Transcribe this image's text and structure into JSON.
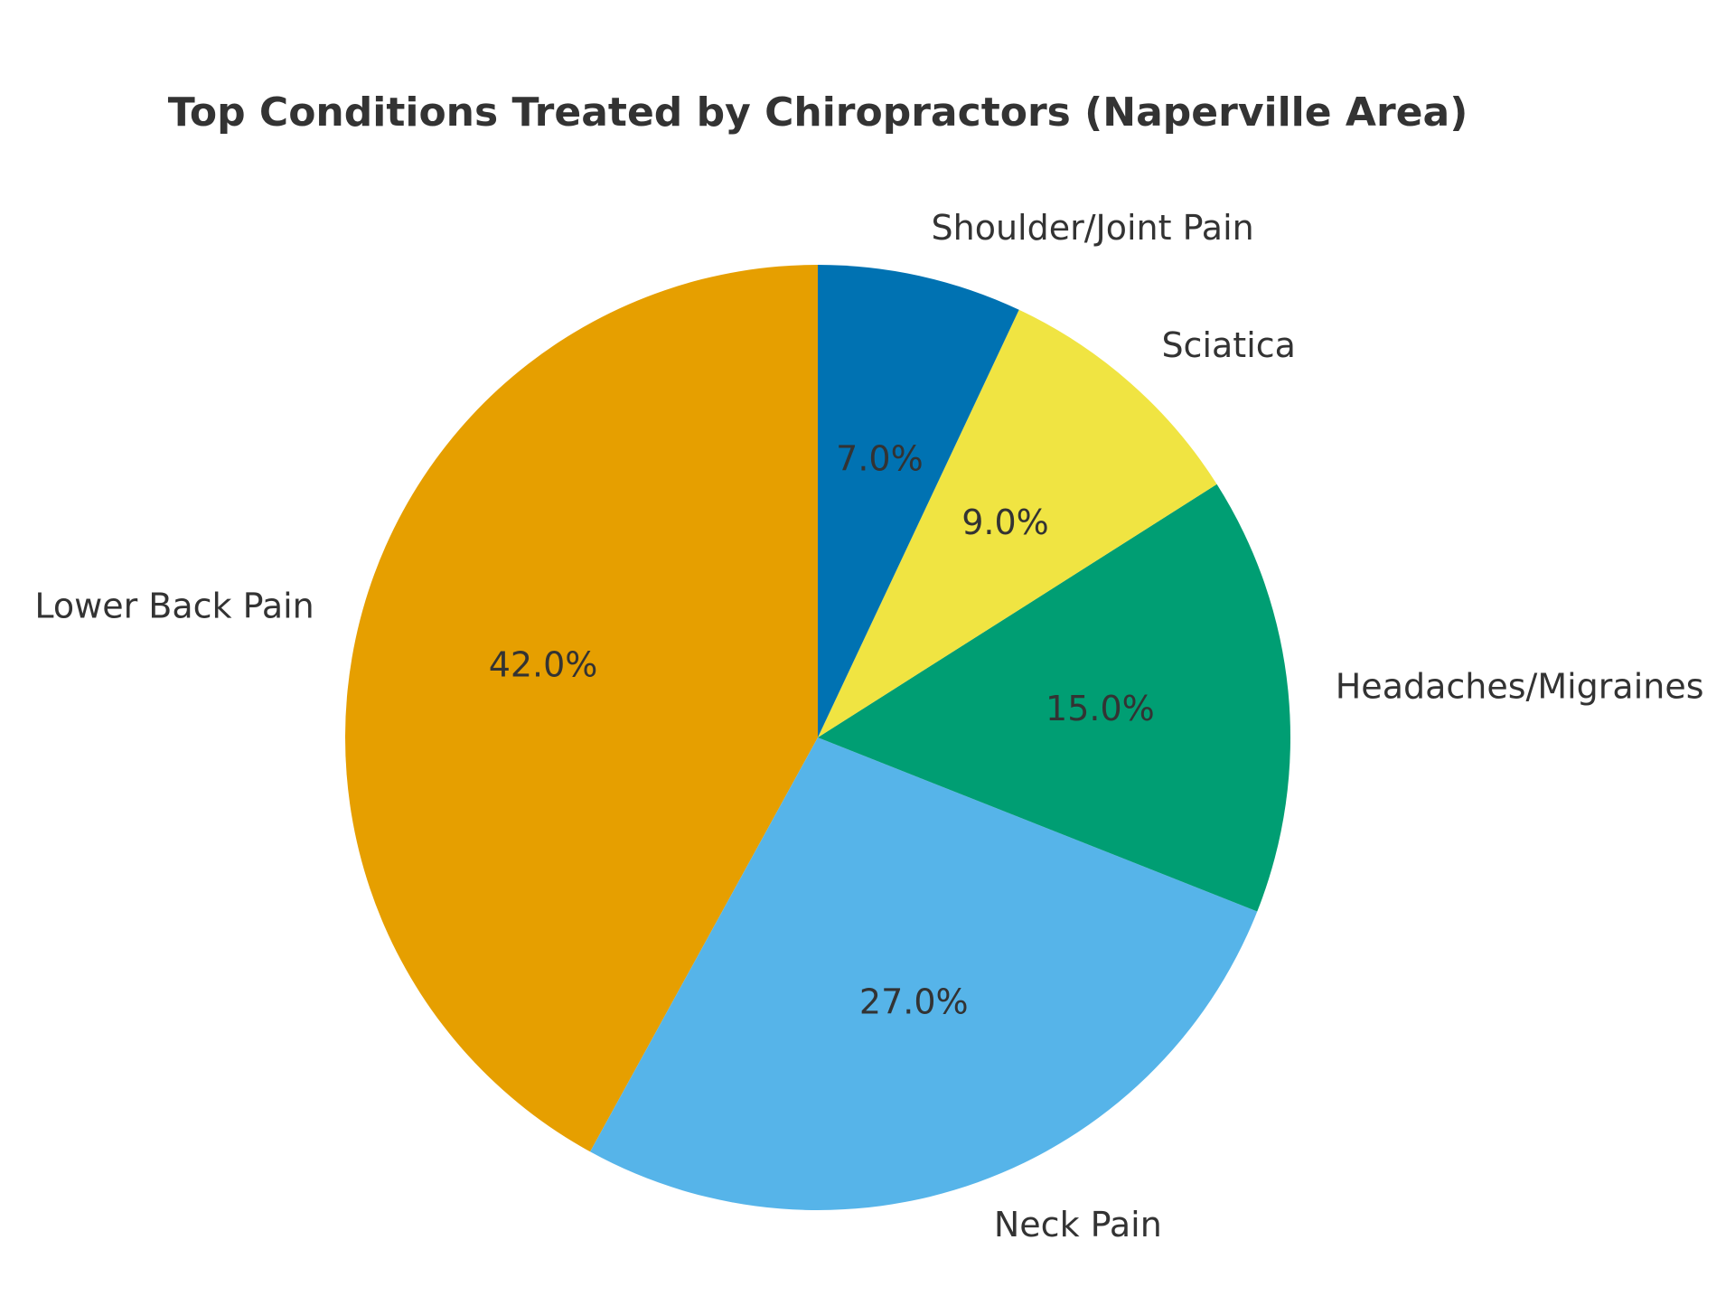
{
  "chart_data": {
    "type": "pie",
    "title": "Top Conditions Treated by Chiropractors (Naperville Area)",
    "categories": [
      "Lower Back Pain",
      "Neck Pain",
      "Headaches/Migraines",
      "Sciatica",
      "Shoulder/Joint Pain"
    ],
    "values": [
      42,
      27,
      15,
      9,
      7
    ],
    "value_labels": [
      "42.0%",
      "27.0%",
      "15.0%",
      "9.0%",
      "7.0%"
    ],
    "colors": [
      "#E69F00",
      "#56B4E9",
      "#009E73",
      "#F0E442",
      "#0072B2"
    ]
  }
}
